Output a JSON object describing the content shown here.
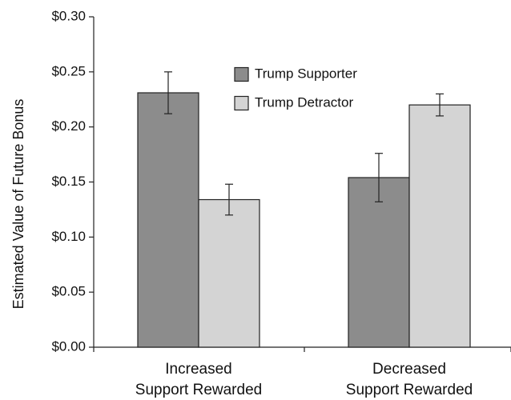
{
  "chart_data": {
    "type": "bar",
    "title": "",
    "xlabel": "",
    "ylabel": "Estimated Value of Future Bonus",
    "ylim": [
      0,
      0.3
    ],
    "yticks": [
      0.0,
      0.05,
      0.1,
      0.15,
      0.2,
      0.25,
      0.3
    ],
    "ytick_labels": [
      "$0.00",
      "$0.05",
      "$0.10",
      "$0.15",
      "$0.20",
      "$0.25",
      "$0.30"
    ],
    "categories": [
      [
        "Increased",
        "Support Rewarded"
      ],
      [
        "Decreased",
        "Support Rewarded"
      ]
    ],
    "series": [
      {
        "name": "Trump Supporter",
        "color": "#8c8c8c",
        "values": [
          0.231,
          0.154
        ],
        "error": [
          0.019,
          0.022
        ]
      },
      {
        "name": "Trump Detractor",
        "color": "#d4d4d4",
        "values": [
          0.134,
          0.22
        ],
        "error": [
          0.014,
          0.01
        ]
      }
    ],
    "legend_position": "top-center",
    "grid": false
  }
}
